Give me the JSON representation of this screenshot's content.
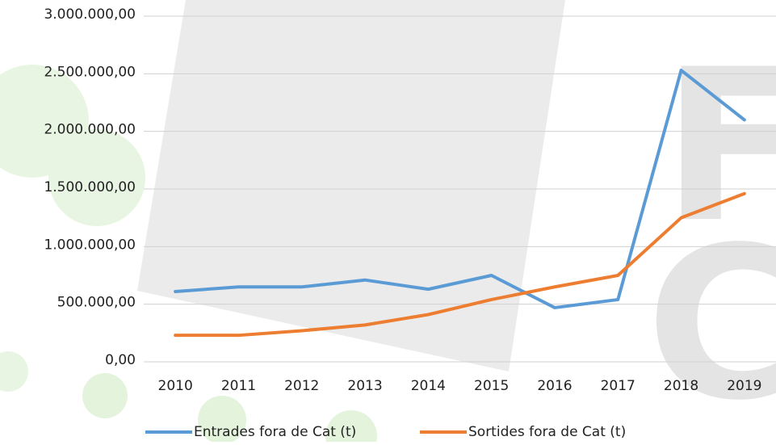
{
  "chart_data": {
    "type": "line",
    "categories": [
      "2010",
      "2011",
      "2012",
      "2013",
      "2014",
      "2015",
      "2016",
      "2017",
      "2018",
      "2019"
    ],
    "series": [
      {
        "name": "Entrades fora de Cat (t)",
        "color": "#5b9bd5",
        "values": [
          610000,
          650000,
          650000,
          710000,
          630000,
          750000,
          470000,
          540000,
          2530000,
          2100000
        ]
      },
      {
        "name": "Sortides fora de Cat (t)",
        "color": "#ed7d31",
        "values": [
          230000,
          230000,
          270000,
          320000,
          410000,
          540000,
          650000,
          750000,
          1250000,
          1460000
        ]
      }
    ],
    "ylim": [
      0,
      3000000
    ],
    "yticks": [
      {
        "value": 0,
        "label": "0,00"
      },
      {
        "value": 500000,
        "label": "500.000,00"
      },
      {
        "value": 1000000,
        "label": "1.000.000,00"
      },
      {
        "value": 1500000,
        "label": "1.500.000,00"
      },
      {
        "value": 2000000,
        "label": "2.000.000,00"
      },
      {
        "value": 2500000,
        "label": "2.500.000,00"
      },
      {
        "value": 3000000,
        "label": "3.000.000,00"
      }
    ],
    "grid": true
  }
}
